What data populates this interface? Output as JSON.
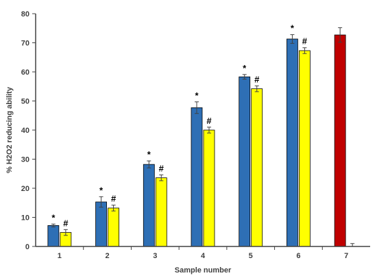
{
  "chart_data": {
    "type": "bar",
    "title": "",
    "xlabel": "Sample number",
    "ylabel": "% H2O2 reducing ability",
    "ylim": [
      0,
      80
    ],
    "y_ticks": [
      "0",
      "10",
      "20",
      "30",
      "40",
      "50",
      "60",
      "70",
      "80"
    ],
    "grid": false,
    "legend": "none",
    "categories": [
      "1",
      "2",
      "3",
      "4",
      "5",
      "6",
      "7"
    ],
    "series": [
      {
        "color": "#2E6FB5",
        "values": [
          7.2,
          15.3,
          28.2,
          47.7,
          58.3,
          71.3,
          72.7
        ],
        "errors": [
          0.5,
          1.8,
          1.2,
          2.0,
          0.8,
          1.5,
          2.5
        ],
        "colors": [
          "#2E6FB5",
          "#2E6FB5",
          "#2E6FB5",
          "#2E6FB5",
          "#2E6FB5",
          "#2E6FB5",
          "#C00000"
        ],
        "markers": [
          "*",
          "*",
          "*",
          "*",
          "*",
          "*",
          ""
        ]
      },
      {
        "color": "#FFFF00",
        "values": [
          4.8,
          13.2,
          23.6,
          40.0,
          54.2,
          67.3,
          0
        ],
        "errors": [
          1.0,
          1.0,
          1.0,
          1.0,
          1.0,
          1.0,
          1.0
        ],
        "markers": [
          "#",
          "#",
          "#",
          "#",
          "#",
          "#",
          ""
        ]
      }
    ]
  }
}
